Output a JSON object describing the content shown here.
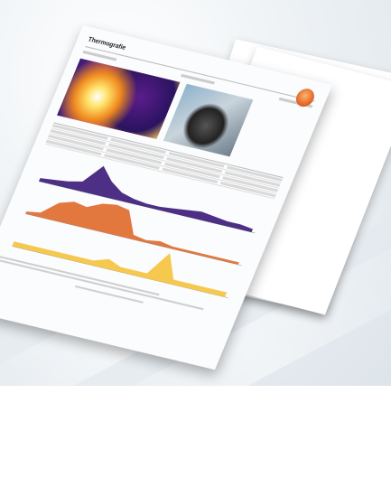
{
  "document": {
    "title": "Thermografie"
  },
  "images": {
    "thermal_icon": "thermal-image",
    "photo_icon": "real-photo",
    "thermal_colors": [
      "#3a1a78",
      "#a2327a",
      "#f2902a",
      "#ffd862"
    ]
  },
  "chart_data": {
    "type": "area",
    "series": [
      {
        "values": [
          2,
          3,
          4,
          6,
          18,
          10,
          5,
          3,
          2,
          2,
          3,
          4,
          5,
          4,
          3,
          3,
          2
        ]
      },
      {
        "values": [
          1,
          2,
          8,
          10,
          9,
          12,
          13,
          12,
          2,
          1,
          2,
          1,
          1,
          1,
          1,
          1,
          1
        ]
      },
      {
        "values": [
          1,
          1,
          1,
          1,
          1,
          1,
          1,
          2,
          1,
          1,
          1,
          6,
          1,
          1,
          1,
          1,
          1
        ]
      }
    ],
    "colors": [
      "#3a1a78",
      "#e0692a",
      "#f5c23a"
    ],
    "grid": false
  }
}
